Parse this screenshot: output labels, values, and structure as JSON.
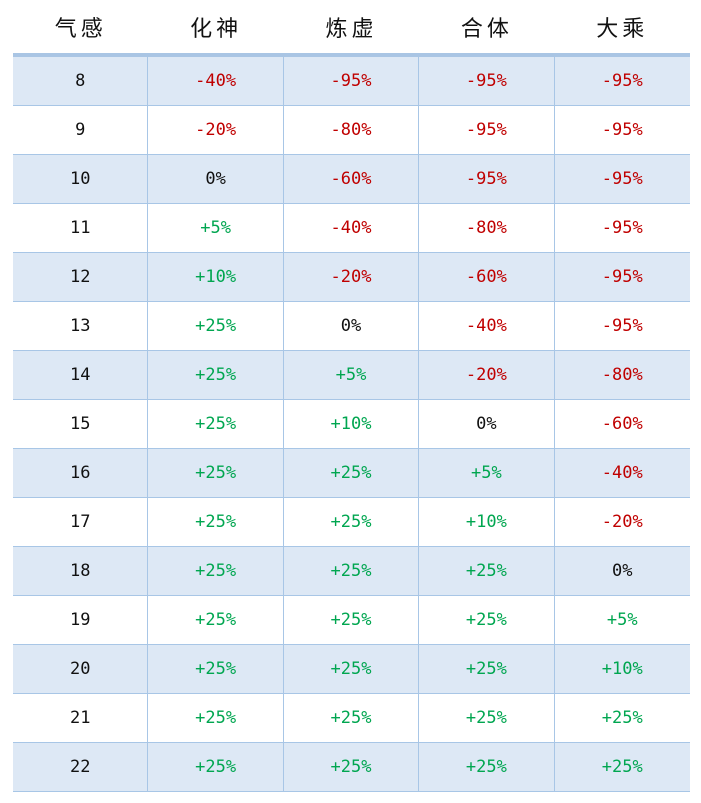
{
  "colors": {
    "negative": "#c00000",
    "positive": "#00a650",
    "neutral": "#111111",
    "stripe": "#dde8f5",
    "border": "#a8c6e6"
  },
  "headers": [
    "气感",
    "化神",
    "炼虚",
    "合体",
    "大乘"
  ],
  "rows": [
    [
      "8",
      "-40%",
      "-95%",
      "-95%",
      "-95%"
    ],
    [
      "9",
      "-20%",
      "-80%",
      "-95%",
      "-95%"
    ],
    [
      "10",
      "0%",
      "-60%",
      "-95%",
      "-95%"
    ],
    [
      "11",
      "+5%",
      "-40%",
      "-80%",
      "-95%"
    ],
    [
      "12",
      "+10%",
      "-20%",
      "-60%",
      "-95%"
    ],
    [
      "13",
      "+25%",
      "0%",
      "-40%",
      "-95%"
    ],
    [
      "14",
      "+25%",
      "+5%",
      "-20%",
      "-80%"
    ],
    [
      "15",
      "+25%",
      "+10%",
      "0%",
      "-60%"
    ],
    [
      "16",
      "+25%",
      "+25%",
      "+5%",
      "-40%"
    ],
    [
      "17",
      "+25%",
      "+25%",
      "+10%",
      "-20%"
    ],
    [
      "18",
      "+25%",
      "+25%",
      "+25%",
      "0%"
    ],
    [
      "19",
      "+25%",
      "+25%",
      "+25%",
      "+5%"
    ],
    [
      "20",
      "+25%",
      "+25%",
      "+25%",
      "+10%"
    ],
    [
      "21",
      "+25%",
      "+25%",
      "+25%",
      "+25%"
    ],
    [
      "22",
      "+25%",
      "+25%",
      "+25%",
      "+25%"
    ]
  ]
}
